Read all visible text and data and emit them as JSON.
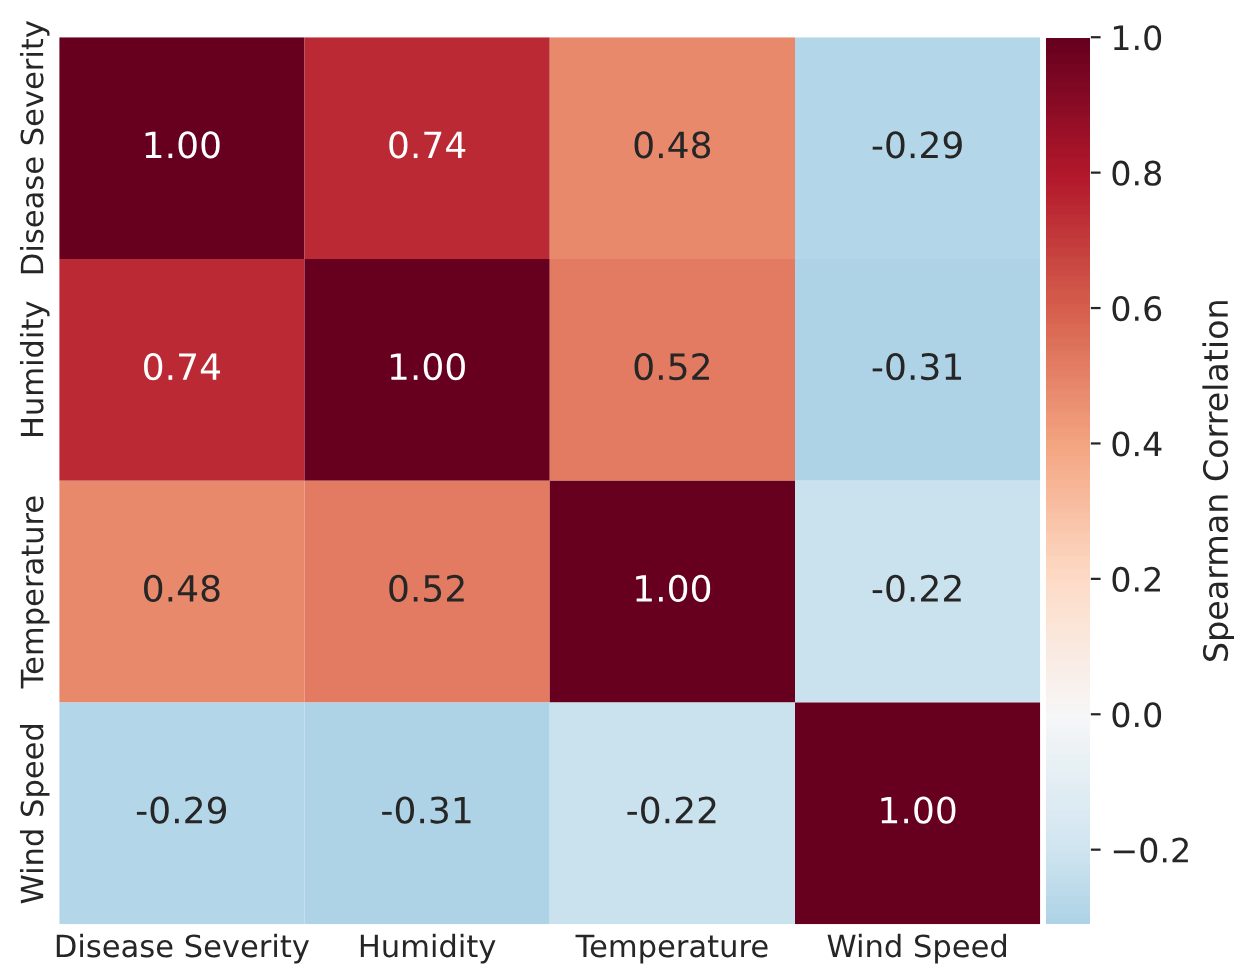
{
  "chart_data": {
    "type": "heatmap",
    "categories": [
      "Disease Severity",
      "Humidity",
      "Temperature",
      "Wind Speed"
    ],
    "y_categories": [
      "Disease Severity",
      "Humidity",
      "Temperature",
      "Wind Speed"
    ],
    "cells": [
      [
        1.0,
        0.74,
        0.48,
        -0.29
      ],
      [
        0.74,
        1.0,
        0.52,
        -0.31
      ],
      [
        0.48,
        0.52,
        1.0,
        -0.22
      ],
      [
        -0.29,
        -0.31,
        -0.22,
        1.0
      ]
    ],
    "data_labels": true,
    "cell_labels": [
      [
        "1.00",
        "0.74",
        "0.48",
        "-0.29"
      ],
      [
        "0.74",
        "1.00",
        "0.52",
        "-0.31"
      ],
      [
        "0.48",
        "0.52",
        "1.00",
        "-0.22"
      ],
      [
        "-0.29",
        "-0.31",
        "-0.22",
        "1.00"
      ]
    ],
    "clabel": "Spearman Correlation",
    "clim": [
      -0.31,
      1.0
    ],
    "cticks": [
      {
        "value": -0.2,
        "label": "−0.2"
      },
      {
        "value": 0.0,
        "label": "0.0"
      },
      {
        "value": 0.2,
        "label": "0.2"
      },
      {
        "value": 0.4,
        "label": "0.4"
      },
      {
        "value": 0.6,
        "label": "0.6"
      },
      {
        "value": 0.8,
        "label": "0.8"
      },
      {
        "value": 1.0,
        "label": "1.0"
      }
    ]
  }
}
